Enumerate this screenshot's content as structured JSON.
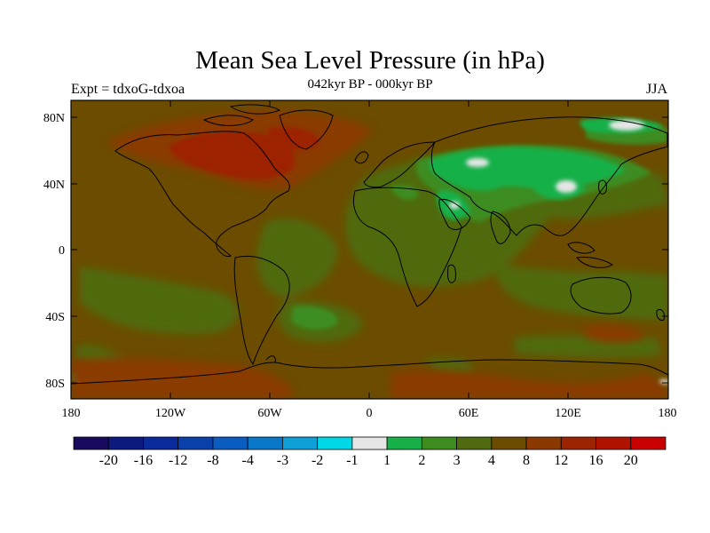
{
  "title": "Mean Sea Level Pressure (in hPa)",
  "subtitle_center": "042kyr BP - 000kyr BP",
  "subtitle_left": "Expt = tdxoG-tdxoa",
  "subtitle_right": "JJA",
  "y_ticks": [
    "80N",
    "40N",
    "0",
    "40S",
    "80S"
  ],
  "x_ticks": [
    "180",
    "120W",
    "60W",
    "0",
    "60E",
    "120E",
    "180"
  ],
  "colorbar": {
    "colors": [
      "#1a0a5e",
      "#0c1a80",
      "#0a2a9c",
      "#0a40aa",
      "#0a5cc0",
      "#0a78c8",
      "#10a0d8",
      "#00d8e8",
      "#e6e6e6",
      "#18b048",
      "#3e8c20",
      "#4f6a10",
      "#6b4c00",
      "#8a3a00",
      "#9c2400",
      "#b01400",
      "#c80000"
    ],
    "labels": [
      "-20",
      "-16",
      "-12",
      "-8",
      "-4",
      "-3",
      "-2",
      "-1",
      "1",
      "2",
      "3",
      "4",
      "8",
      "12",
      "16",
      "20"
    ]
  },
  "colors": {
    "background_field": "#6b4c00",
    "band_4": "#4f6a10",
    "band_3": "#3e8c20",
    "band_2": "#18b048",
    "band_1": "#e6e6e6",
    "band_8": "#8a3a00",
    "band_12": "#9c2400"
  }
}
